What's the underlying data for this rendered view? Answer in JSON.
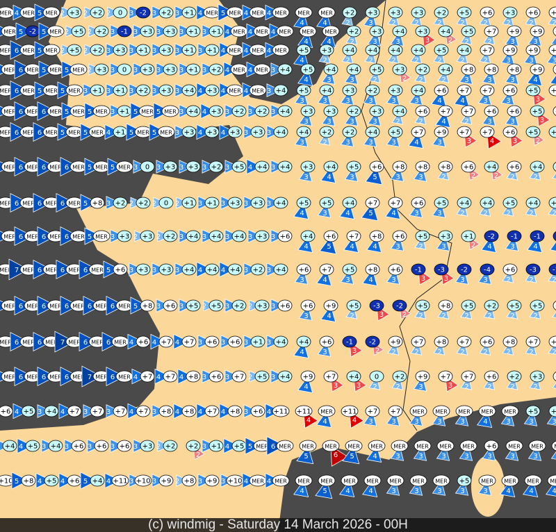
{
  "footer": {
    "caption": "(c) windmig - Saturday 14 March 2026 - 00H"
  },
  "colors": {
    "land": "#fbd89a",
    "sea": "#4a4a4a",
    "border": "#222222",
    "temp_positive": "#ffffff",
    "temp_cold": "#c8f8f8",
    "temp_negative": "#1030b0",
    "wind_blue": {
      "1": "#a8d8f8",
      "2": "#7ab8f0",
      "3": "#3a90e8",
      "4": "#1070e0",
      "5": "#0a5ed0",
      "6": "#0050c0",
      "7": "#0040a0"
    },
    "wind_red": {
      "2": "#f08080",
      "3": "#f04848",
      "4": "#e00000",
      "6": "#c00000"
    }
  },
  "legend_note": "",
  "stations": {
    "rows": [
      "MER:5 MER:4 MER:5 +3:2 +2:2 0:2 -2:3 +2:3 +1:3 MER:4 MER:5 MER:4 MER:4 MER:4 MER:4 +2:2 +3:3 +3:2 +3:2 +2:2 +5:2 +6:2 +3:2 +6:2 +6:2",
      "MER:5 -2:5 MER:5 +5:2 +2:2 -1:3 +3:3 +3:3 +1:3 +1:3 MER:4 MER:4 MER:4 MER:4 MER:4 +2:2 +3:3 +4:3 +3:-3 +4:-2 +5:2 +7:2 +9:3 +9:3 +6:3",
      "MER:5 MER:6 MER:5 +5:2 +2:2 +3:3 +1:3 +3:3 +1:3 +1:3 MER:4 MER:4 MER:4 +5:4 +3:2 +4:2 +4:2 +4:2 +4:2 +5:2 +4:2 +7:2 +9:3 +9:3 +8:3",
      "MER:5 MER:6 MER:5 MER:5 +3:2 0:3 +3:3 +3:3 +1:3 +2:3 MER:4 MER:4 +4:3 +5:4 +4:3 +4:3 +5:2 +3:-2 +2:2 +4:2 +8:3 +8:3 +8:3 +9:4 +9:4",
      "MER:5 MER:6 MER:5 MER:5 +1:3 +1:3 +2:3 +3:3 +4:3 +3:4 MER:4 MER:4 +4:3 +5:3 +4:3 +3:3 +2:3 +3:3 +4:3 +6:4 +7:4 +7:3 +6:3 +5:-3 +8:-3",
      "MER:5 MER:6 MER:6 MER:5 MER:5 +1:3 MER:5 MER:5 +4:3 +3:4 +2:3 +2:3 +4:3 +3:3 +3:3 +2:3 +3:3 +4:2 +6:2 +7:4 +7:2 +6:3 +6:3 +5:-3 +6:-3",
      "MER:6 MER:6 MER:6 MER:5 MER:5 +1:4 MER:5 MER:5 +3:3 +3:4 +3:4 +3:3 +4:3 +4:3 +2:2 +2:3 +4:3 +5:3 +7:4 +9:3 +7:-3 +7:-4 +6:-3 +5:-2 +5:-2",
      "MER:6 MER:6 MER:6 MER:6 MER:5 MER:5 0:3 +3:3 +3:3 +2:3 +5:3 +4:4 +4:3 +3:3 +4:4 +5:3 +6:5 +8:3 +8:3 +8:2 +6:-2 +4:-2 +6:2 +4:2 +5:2",
      "MER:6 MER:6 MER:6 MER:6 +8:5 +2:3 +2:2 0:2 +1:2 +1:3 +3:3 +3:3 +4:3 +5:4 +5:3 +4:4 +7:5 +7:4 +6:3 +5:3 +4:2 +4:2 +5:2 +4:2 +5:2",
      "MER:6 MER:6 MER:6 MER:6 MER:5 +3:3 +3:2 +2:2 +4:3 +4:3 +4:3 +3:3 +6:3 +4:4 +6:5 +7:4 +8:4 +6:3 +5:2 +3:3 +1:-2 -2:4 -1:3 -1:4 -1:4",
      "MER:6 MER:7 MER:6 MER:6 MER:6 +6:5 +3:3 +3:3 +4:3 +4:4 +4:4 +2:3 +4:3 +6:3 +7:4 +5:3 +8:4 +6:3 -1:-3 -3:-3 -2:3 -4:3 +6:2 -3:2 -1:2",
      "MER:6 MER:6 MER:6 MER:6 MER:6 MER:6 +8:5 +6:3 +5:3 +5:2 +2:3 +3:2 +6:3 +6:3 +9:4 +5:2 -3:-3 -2:-2 +5:2 +8:2 +5:2 +2:2 +5:2 +5:2 +6:2",
      "MER:6 MER:6 MER:6 MER:7 MER:6 MER:6 +6:4 +7:4 +7:4 +6:3 +6:3 +1:3 +4:3 +4:4 +6:3 -1:-3 -2:-2 +9:2 +7:2 +8:2 +7:2 +6:2 +8:2 +7:2 +7:2",
      "MER:5 MER:6 MER:6 MER:6 MER:7 MER:6 +7:4 +7:4 +8:4 +6:3 +7:3 +5:2 +4:3 +9:4 +7:-3 +4:-3 0:2 +2:2 +9:3 +7:-3 +7:2 +6:2 +2:2 +3:2 +7:2",
      "+6:5 +5:4 +4:3 +7:4 +7:3 +7:3 +7:4 +8:3 +8:4 +7:4 +8:4 +6:3 +11:4 +11:-4 MER:4 +11:-4 +7:3 +7:3 MER:3 MER:3 MER:3 MER:4 MER:3 +5:3 +2:3",
      "+4:3 +5:4 +4:3 +6:3 +6:3 +6:3 +3:3 +2:2 +2:-2 +1:3 +5:4 MER:5 MER:6 MER:5 MER:-6 MER:5 MER:4 MER:3 MER:3 MER:3 MER:3 +6:3 MER:3 MER:3 MER:3",
      "+10:4 +8:5 +5:4 +6:4 +4:5 +11:4 +10:3 +9:3 +8:2 +9:3 +10:3 MER:4 MER:4 MER:4 MER:5 MER:4 MER:4 MER:3 MER:3 MER:3 +5:3 MER:3 MER:4 MER:4 MER:4"
    ]
  }
}
